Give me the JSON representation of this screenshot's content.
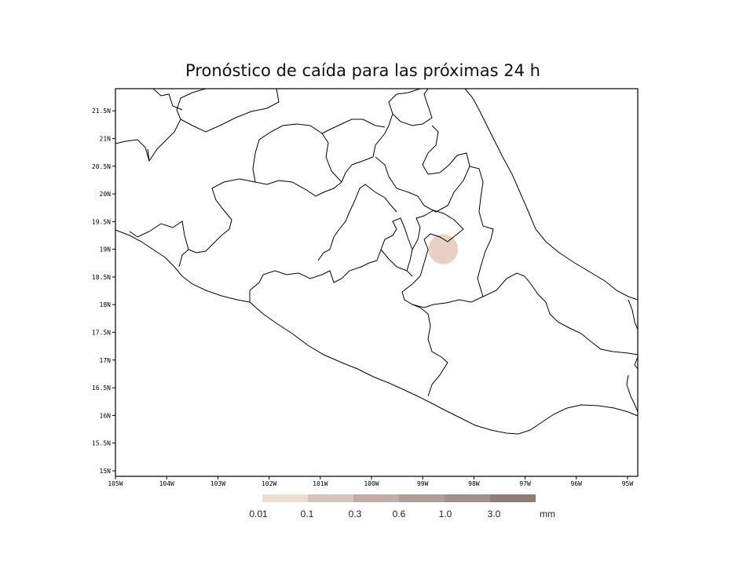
{
  "title": "Pronóstico de caída para las próximas 24 h",
  "map": {
    "lon_range": [
      -105,
      -94.8
    ],
    "lat_range": [
      14.9,
      21.9
    ],
    "lon_ticks": [
      "105W",
      "104W",
      "103W",
      "102W",
      "101W",
      "100W",
      "99W",
      "98W",
      "97W",
      "96W",
      "95W"
    ],
    "lat_ticks": [
      "15N",
      "15.5N",
      "16N",
      "16.5N",
      "17N",
      "17.5N",
      "18N",
      "18.5N",
      "19N",
      "19.5N",
      "20N",
      "20.5N",
      "21N",
      "21.5N"
    ],
    "ash_plume": {
      "lon": -98.6,
      "lat": 19.0,
      "color": "#e4c8b8"
    }
  },
  "colorbar": {
    "colors": [
      "#eedcd0",
      "#d9c2b8",
      "#c5aca2",
      "#b49d96",
      "#a28e8a",
      "#917c7a"
    ],
    "labels": [
      "0.01",
      "0.1",
      "0.3",
      "0.6",
      "1.0",
      "3.0"
    ],
    "unit": "mm"
  }
}
